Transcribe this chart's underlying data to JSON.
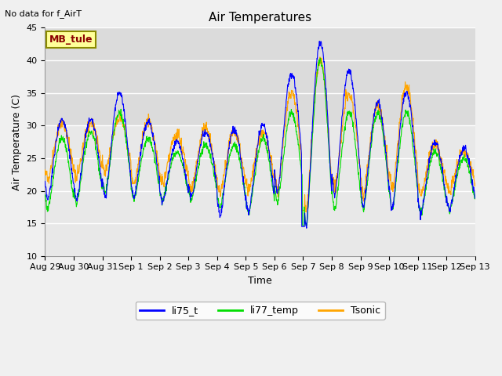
{
  "title": "Air Temperatures",
  "ylabel": "Air Temperature (C)",
  "xlabel": "Time",
  "top_left_text": "No data for f_AirT",
  "legend_label_text": "MB_tule",
  "legend_label_color": "#8B0000",
  "legend_label_bg": "#FFFF99",
  "legend_label_edgecolor": "#8B8B00",
  "ylim": [
    10,
    45
  ],
  "yticks": [
    10,
    15,
    20,
    25,
    30,
    35,
    40,
    45
  ],
  "bg_band_low": 30,
  "bg_band_high": 45,
  "line_colors": {
    "li75_t": "#0000FF",
    "li77_temp": "#00DD00",
    "Tsonic": "#FFA500"
  },
  "x_labels": [
    "Aug 29",
    "Aug 30",
    "Aug 31",
    "Sep 1",
    "Sep 2",
    "Sep 3",
    "Sep 4",
    "Sep 5",
    "Sep 6",
    "Sep 7",
    "Sep 8",
    "Sep 9",
    "Sep 10",
    "Sep 11",
    "Sep 12",
    "Sep 13"
  ],
  "fig_bg_color": "#F0F0F0",
  "plot_bg_color": "#E8E8E8",
  "grid_color": "#FFFFFF",
  "title_fontsize": 11,
  "label_fontsize": 9,
  "tick_fontsize": 8,
  "legend_fontsize": 9
}
